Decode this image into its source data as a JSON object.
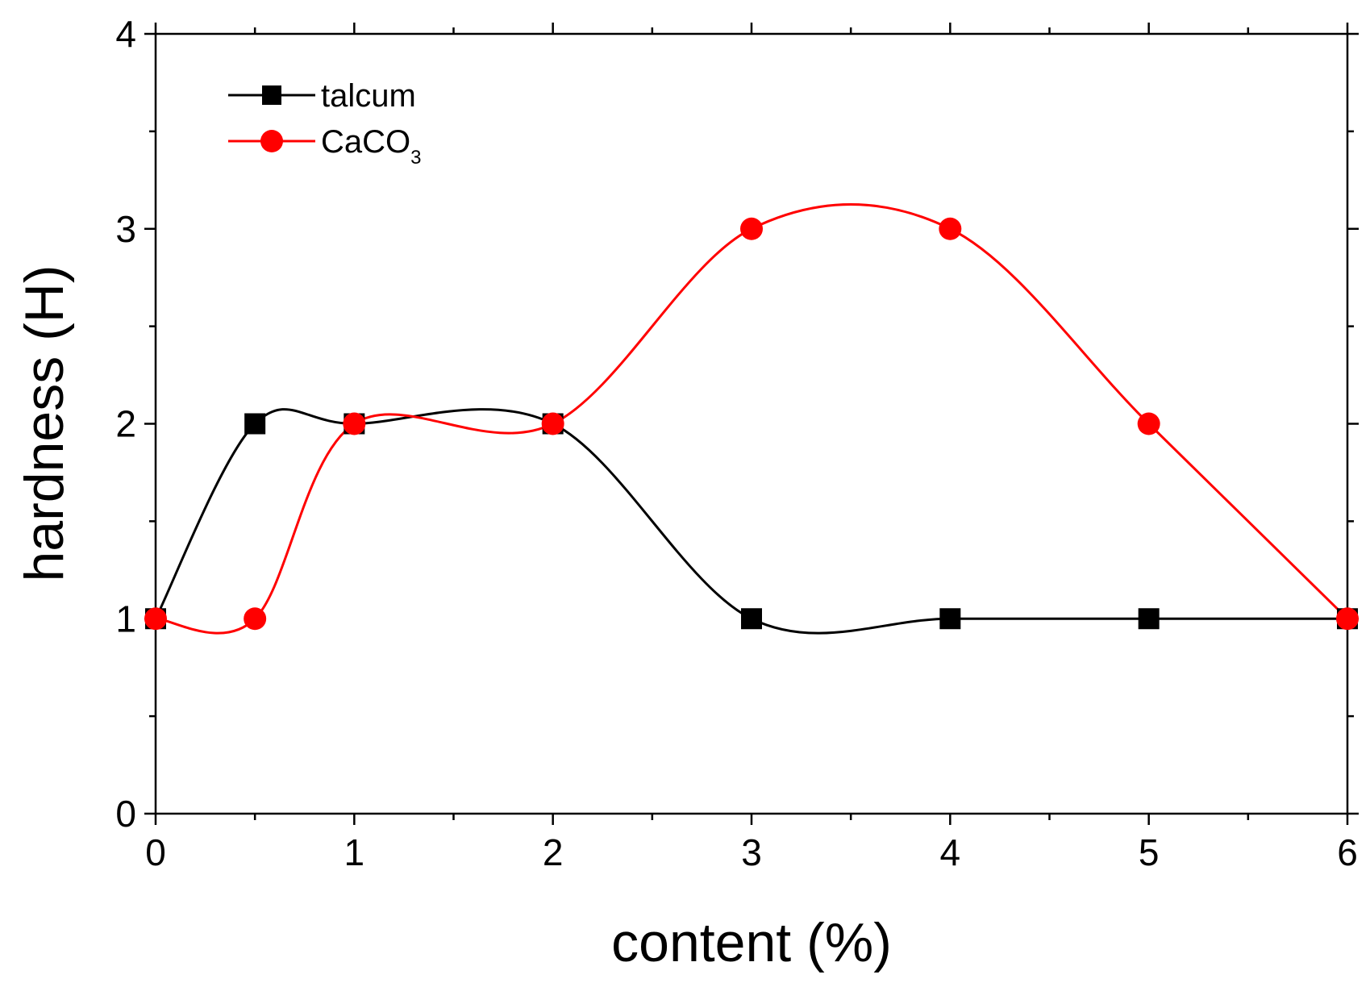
{
  "chart_data": {
    "type": "line",
    "title": "",
    "xlabel": "content (%)",
    "ylabel": "hardness (H)",
    "xlim": [
      0,
      6
    ],
    "ylim": [
      0,
      4
    ],
    "x_ticks": [
      "0",
      "1",
      "2",
      "3",
      "4",
      "5",
      "6"
    ],
    "y_ticks": [
      "0",
      "1",
      "2",
      "3",
      "4"
    ],
    "grid": false,
    "legend_position": "top-left",
    "series": [
      {
        "name": "talcum",
        "marker": "square",
        "color": "#000000",
        "x": [
          0,
          0.5,
          1,
          2,
          3,
          4,
          5,
          6
        ],
        "y": [
          1,
          2,
          2,
          2,
          1,
          1,
          1,
          1
        ]
      },
      {
        "name": "CaCO",
        "name_subscript": "3",
        "marker": "circle",
        "color": "#ff0000",
        "x": [
          0,
          0.5,
          1,
          2,
          3,
          4,
          5,
          6
        ],
        "y": [
          1,
          1,
          2,
          2,
          3,
          3,
          2,
          1
        ]
      }
    ]
  }
}
